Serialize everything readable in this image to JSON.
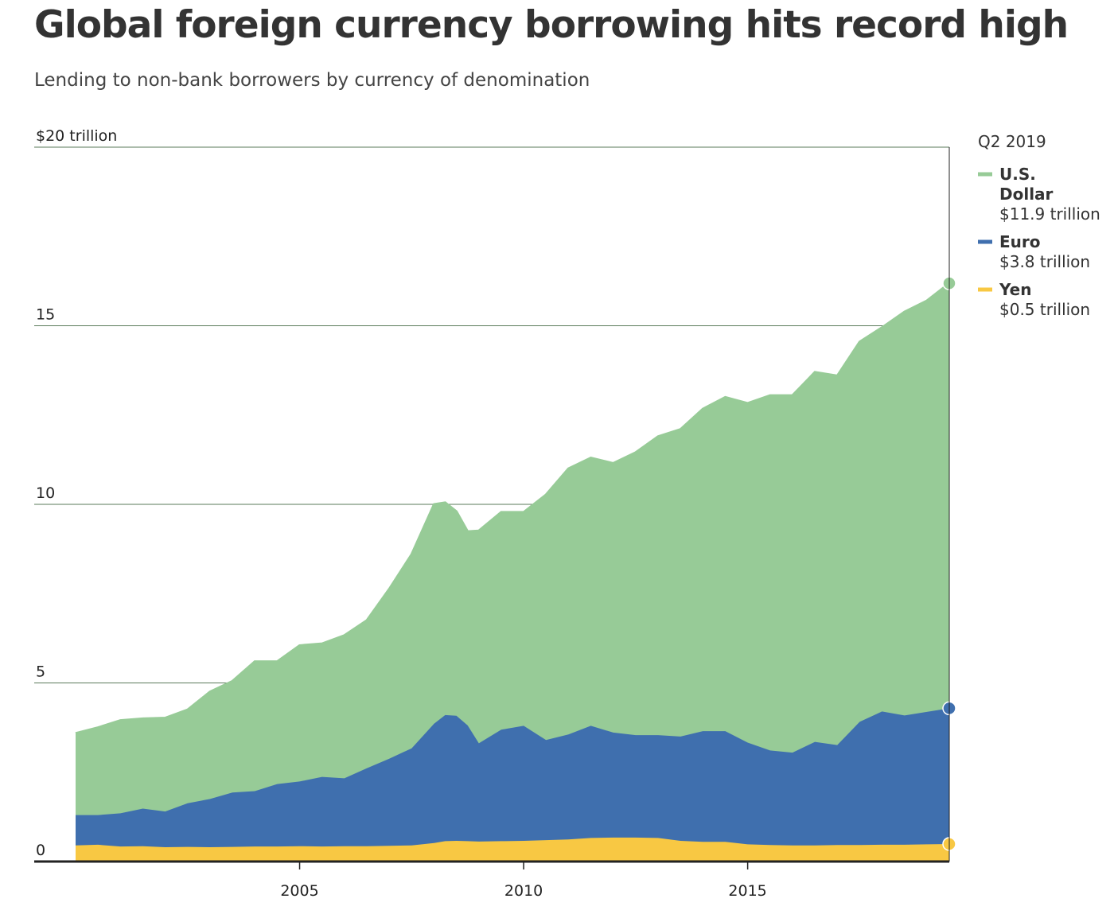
{
  "title": "Global foreign currency borrowing hits record high",
  "subtitle": "Lending to non-bank borrowers by currency of denomination",
  "legend": {
    "header": "Q2 2019",
    "items": [
      {
        "name_lines": [
          "U.S.",
          "Dollar"
        ],
        "value": "$11.9 trillion",
        "color": "#97cb97"
      },
      {
        "name_lines": [
          "Euro"
        ],
        "value": "$3.8 trillion",
        "color": "#3f6fae"
      },
      {
        "name_lines": [
          "Yen"
        ],
        "value": "$0.5 trillion",
        "color": "#f8c843"
      }
    ]
  },
  "chart_data": {
    "type": "area",
    "stacked": true,
    "xlim": [
      2000.0,
      2019.5
    ],
    "ylim": [
      0,
      20
    ],
    "ylabel": "",
    "y_ticks": [
      {
        "value": 20,
        "label": "$20 trillion"
      },
      {
        "value": 15,
        "label": "15"
      },
      {
        "value": 10,
        "label": "10"
      },
      {
        "value": 5,
        "label": "5"
      },
      {
        "value": 0,
        "label": "0"
      }
    ],
    "x_ticks": [
      {
        "value": 2005,
        "label": "2005"
      },
      {
        "value": 2010,
        "label": "2010"
      },
      {
        "value": 2015,
        "label": "2015"
      }
    ],
    "grid": true,
    "legend_position": "right",
    "x": [
      2000.0,
      2000.5,
      2001.0,
      2001.5,
      2002.0,
      2002.5,
      2003.0,
      2003.5,
      2004.0,
      2004.5,
      2005.0,
      2005.5,
      2006.0,
      2006.5,
      2007.0,
      2007.5,
      2008.0,
      2008.25,
      2008.5,
      2008.75,
      2009.0,
      2009.5,
      2010.0,
      2010.5,
      2011.0,
      2011.5,
      2012.0,
      2012.5,
      2013.0,
      2013.5,
      2014.0,
      2014.5,
      2015.0,
      2015.5,
      2016.0,
      2016.5,
      2017.0,
      2017.5,
      2018.0,
      2018.5,
      2019.0,
      2019.5
    ],
    "series": [
      {
        "name": "Yen",
        "values": [
          0.45,
          0.47,
          0.42,
          0.43,
          0.4,
          0.41,
          0.4,
          0.41,
          0.42,
          0.42,
          0.43,
          0.42,
          0.43,
          0.43,
          0.44,
          0.45,
          0.52,
          0.57,
          0.58,
          0.57,
          0.56,
          0.57,
          0.58,
          0.6,
          0.62,
          0.66,
          0.67,
          0.67,
          0.66,
          0.58,
          0.55,
          0.55,
          0.48,
          0.46,
          0.45,
          0.45,
          0.46,
          0.46,
          0.47,
          0.47,
          0.48,
          0.49
        ]
      },
      {
        "name": "Euro",
        "values": [
          0.85,
          0.83,
          0.93,
          1.05,
          1.0,
          1.22,
          1.35,
          1.52,
          1.55,
          1.75,
          1.81,
          1.95,
          1.9,
          2.18,
          2.44,
          2.72,
          3.34,
          3.53,
          3.5,
          3.24,
          2.75,
          3.12,
          3.22,
          2.8,
          2.94,
          3.14,
          2.94,
          2.87,
          2.88,
          2.92,
          3.1,
          3.1,
          2.85,
          2.65,
          2.6,
          2.9,
          2.8,
          3.45,
          3.73,
          3.62,
          3.71,
          3.8
        ]
      },
      {
        "name": "U.S. Dollar",
        "values": [
          2.29,
          2.45,
          2.6,
          2.52,
          2.62,
          2.62,
          3.0,
          3.12,
          3.63,
          3.43,
          3.81,
          3.73,
          4.0,
          4.14,
          4.75,
          5.43,
          6.14,
          5.95,
          5.72,
          5.43,
          5.95,
          6.09,
          5.98,
          6.87,
          7.44,
          7.5,
          7.54,
          7.91,
          8.36,
          8.6,
          9.02,
          9.35,
          9.5,
          9.94,
          10.0,
          10.35,
          10.34,
          10.64,
          10.75,
          11.3,
          11.51,
          11.9
        ]
      }
    ]
  }
}
